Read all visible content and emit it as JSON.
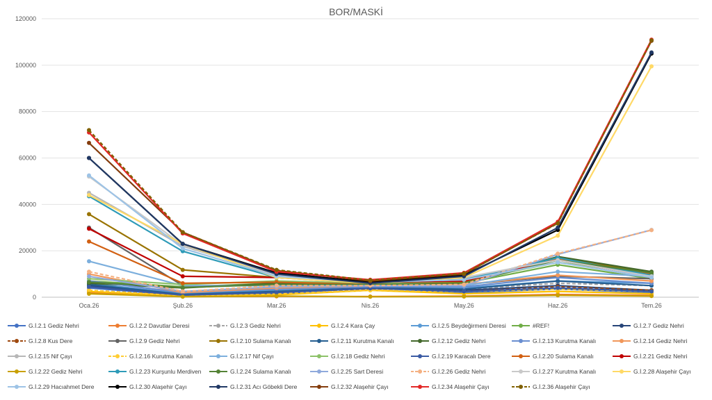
{
  "chart_data": {
    "type": "line",
    "title": "BOR/MASKİ",
    "xlabel": "",
    "ylabel": "",
    "ylim": [
      0,
      120000
    ],
    "yticks": [
      0,
      20000,
      40000,
      60000,
      80000,
      100000,
      120000
    ],
    "grid": true,
    "legend_position": "bottom",
    "categories": [
      "Oca.26",
      "Şub.26",
      "Mar.26",
      "Nis.26",
      "May.26",
      "Haz.26",
      "Tem.26"
    ],
    "series": [
      {
        "name": "G.İ.2.1 Gediz Nehri",
        "color": "#4472c4",
        "dash": false,
        "values": [
          4000,
          800,
          1500,
          4000,
          2000,
          3500,
          2000
        ]
      },
      {
        "name": "G.İ.2.2 Davutlar Deresi",
        "color": "#ed7d31",
        "dash": false,
        "values": [
          2000,
          300,
          400,
          300,
          500,
          1200,
          800
        ]
      },
      {
        "name": "G.İ.2.3 Gediz Nehri",
        "color": "#a5a5a5",
        "dash": true,
        "values": [
          5000,
          1200,
          2500,
          4500,
          3500,
          6000,
          5000
        ]
      },
      {
        "name": "G.İ.2.4 Kara Çay",
        "color": "#ffc000",
        "dash": false,
        "values": [
          2500,
          500,
          1000,
          3000,
          1500,
          2500,
          1500
        ]
      },
      {
        "name": "G.İ.2.5 Beydeğirmeni Deresi",
        "color": "#5b9bd5",
        "dash": false,
        "values": [
          6000,
          1500,
          3000,
          4500,
          4000,
          7000,
          6000
        ]
      },
      {
        "name": "#REF!",
        "color": "#70ad47",
        "dash": false,
        "values": [
          7000,
          4500,
          6000,
          5500,
          6000,
          14000,
          8000
        ]
      },
      {
        "name": "G.İ.2.7 Gediz Nehri",
        "color": "#264478",
        "dash": false,
        "values": [
          5000,
          1000,
          2000,
          4000,
          3000,
          5000,
          3000
        ]
      },
      {
        "name": "G.İ.2.8 Kus Dere",
        "color": "#9e480e",
        "dash": true,
        "values": [
          3000,
          700,
          1500,
          3500,
          2500,
          4500,
          3000
        ]
      },
      {
        "name": "G.İ.2.9 Gediz Nehri",
        "color": "#636363",
        "dash": false,
        "values": [
          30000,
          5000,
          5000,
          5000,
          5500,
          9000,
          8000
        ]
      },
      {
        "name": "G.İ.2.10 Sulama Kanalı",
        "color": "#997300",
        "dash": false,
        "values": [
          35800,
          11800,
          8500,
          6000,
          6500,
          17000,
          10500
        ]
      },
      {
        "name": "G.İ.2.11 Kurutma Kanalı",
        "color": "#255e91",
        "dash": false,
        "values": [
          5500,
          1200,
          2500,
          4000,
          3500,
          7000,
          5000
        ]
      },
      {
        "name": "G.İ.2.12 Gediz Nehri",
        "color": "#43682b",
        "dash": false,
        "values": [
          6000,
          4000,
          6000,
          5500,
          6000,
          17500,
          11000
        ]
      },
      {
        "name": "G.İ.2.13 Kurutma Kanalı",
        "color": "#698ed0",
        "dash": false,
        "values": [
          7000,
          2000,
          3500,
          4500,
          4500,
          8500,
          6000
        ]
      },
      {
        "name": "G.İ.2.14 Gediz Nehri",
        "color": "#f1975a",
        "dash": false,
        "values": [
          10000,
          2000,
          4000,
          5000,
          5500,
          9500,
          7000
        ]
      },
      {
        "name": "G.İ.2.15 Nif Çayı",
        "color": "#b7b7b7",
        "dash": false,
        "values": [
          45000,
          22000,
          10000,
          6500,
          8000,
          16000,
          9000
        ]
      },
      {
        "name": "G.İ.2.16 Kurutma Kanalı",
        "color": "#ffcd33",
        "dash": true,
        "values": [
          3000,
          600,
          1500,
          3000,
          2500,
          3500,
          2500
        ]
      },
      {
        "name": "G.İ.2.17 Nif Çayı",
        "color": "#7cafdd",
        "dash": false,
        "values": [
          15500,
          5000,
          5000,
          5000,
          5000,
          11000,
          9000
        ]
      },
      {
        "name": "G.İ.2.18 Gediz Nehri",
        "color": "#8cc168",
        "dash": false,
        "values": [
          8000,
          5500,
          7000,
          6000,
          7000,
          15000,
          10000
        ]
      },
      {
        "name": "G.İ.2.19 Karacalı Dere",
        "color": "#3a5aa3",
        "dash": false,
        "values": [
          4500,
          900,
          2000,
          3800,
          2500,
          4000,
          2500
        ]
      },
      {
        "name": "G.İ.2.20 Sulama Kanalı",
        "color": "#d26012",
        "dash": false,
        "values": [
          24000,
          6000,
          6500,
          5500,
          6000,
          16500,
          10000
        ]
      },
      {
        "name": "G.İ.2.21 Gediz Nehri",
        "color": "#c00000",
        "dash": false,
        "values": [
          29500,
          9000,
          8500,
          6500,
          7000,
          16000,
          9000
        ]
      },
      {
        "name": "G.İ.2.22 Gediz Nehri",
        "color": "#c9a000",
        "dash": false,
        "values": [
          1500,
          200,
          500,
          200,
          300,
          800,
          500
        ]
      },
      {
        "name": "G.İ.2.23 Kurşunlu Merdiven",
        "color": "#2e9bb8",
        "dash": false,
        "values": [
          43500,
          19800,
          8500,
          6500,
          7500,
          17000,
          9500
        ]
      },
      {
        "name": "G.İ.2.24 Sulama Kanalı",
        "color": "#548235",
        "dash": false,
        "values": [
          6500,
          4200,
          5500,
          5500,
          6000,
          16000,
          10500
        ]
      },
      {
        "name": "G.İ.2.25 Sart Deresi",
        "color": "#8fa9dc",
        "dash": false,
        "values": [
          9000,
          2500,
          4500,
          5000,
          5000,
          18500,
          29000
        ]
      },
      {
        "name": "G.İ.2.26 Gediz Nehri",
        "color": "#f4b183",
        "dash": true,
        "values": [
          11000,
          2500,
          5000,
          5000,
          5500,
          18800,
          28900
        ]
      },
      {
        "name": "G.İ.2.27 Kurutma Kanalı",
        "color": "#c9c9c9",
        "dash": false,
        "values": [
          52000,
          22500,
          9500,
          6500,
          8500,
          16000,
          9000
        ]
      },
      {
        "name": "G.İ.2.28 Alaşehir Çayı",
        "color": "#ffd966",
        "dash": false,
        "values": [
          44000,
          23000,
          8500,
          6000,
          8500,
          26500,
          99500
        ]
      },
      {
        "name": "G.İ.2.29 Hacıahmet Dere",
        "color": "#9dc3e6",
        "dash": false,
        "values": [
          52500,
          21000,
          9000,
          6500,
          7500,
          15000,
          8500
        ]
      },
      {
        "name": "G.İ.2.30 Alaşehir Çayı",
        "color": "#000000",
        "dash": false,
        "values": [
          60000,
          23000,
          10500,
          6500,
          9500,
          29000,
          105000
        ]
      },
      {
        "name": "G.İ.2.31 Acı Göbekli Dere",
        "color": "#203864",
        "dash": false,
        "values": [
          60000,
          23000,
          10000,
          6000,
          9000,
          30000,
          105500
        ]
      },
      {
        "name": "G.İ.2.32 Alaşehir Çayı",
        "color": "#843c0c",
        "dash": false,
        "values": [
          66500,
          28000,
          11500,
          7000,
          10000,
          32000,
          110500
        ]
      },
      {
        "name": "G.İ.2.34 Alaşehir Çayı",
        "color": "#e32726",
        "dash": false,
        "values": [
          71000,
          27500,
          11000,
          7500,
          10500,
          32500,
          111000
        ]
      },
      {
        "name": "G.İ.2.36 Alaşehir Çayı",
        "color": "#806000",
        "dash": true,
        "values": [
          72000,
          28000,
          11800,
          7300,
          10200,
          31800,
          110700
        ]
      }
    ]
  }
}
